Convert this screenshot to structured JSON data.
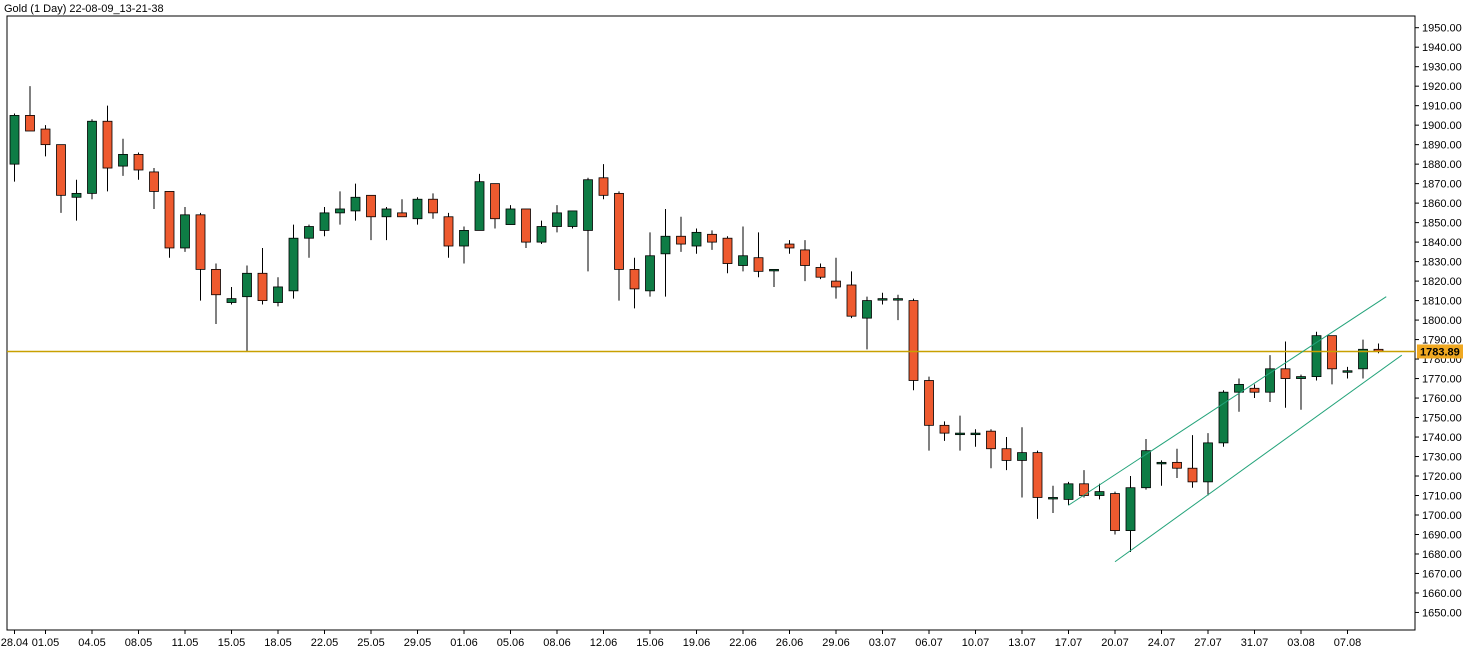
{
  "window": {
    "title": "Gold (1 Day) 22-08-09_13-21-38"
  },
  "colors": {
    "background": "#ffffff",
    "bull_fill": "#0e7c45",
    "bear_fill": "#ee5a2f",
    "wick": "#000000",
    "price_line": "#c8a000",
    "channel": "#23a37a",
    "price_label_bg": "#f0a820",
    "axis": "#000000"
  },
  "chart_data": {
    "type": "candlestick",
    "title": "Gold (1 Day) 22-08-09_13-21-38",
    "ylim": [
      1641,
      1956
    ],
    "y_ticks": [
      1650,
      1660,
      1670,
      1680,
      1690,
      1700,
      1710,
      1720,
      1730,
      1740,
      1750,
      1760,
      1770,
      1780,
      1790,
      1800,
      1810,
      1820,
      1830,
      1840,
      1850,
      1860,
      1870,
      1880,
      1890,
      1900,
      1910,
      1920,
      1930,
      1940,
      1950
    ],
    "y_tick_labels": [
      "1650.00",
      "1660.00",
      "1670.00",
      "1680.00",
      "1690.00",
      "1700.00",
      "1710.00",
      "1720.00",
      "1730.00",
      "1740.00",
      "1750.00",
      "1760.00",
      "1770.00",
      "1780.00",
      "1790.00",
      "1800.00",
      "1810.00",
      "1820.00",
      "1830.00",
      "1840.00",
      "1850.00",
      "1860.00",
      "1870.00",
      "1880.00",
      "1890.00",
      "1900.00",
      "1910.00",
      "1920.00",
      "1930.00",
      "1940.00",
      "1950.00"
    ],
    "x_tick_labels": [
      {
        "i": 0,
        "label": "28.04"
      },
      {
        "i": 2,
        "label": "01.05"
      },
      {
        "i": 5,
        "label": "04.05"
      },
      {
        "i": 8,
        "label": "08.05"
      },
      {
        "i": 11,
        "label": "11.05"
      },
      {
        "i": 14,
        "label": "15.05"
      },
      {
        "i": 17,
        "label": "18.05"
      },
      {
        "i": 20,
        "label": "22.05"
      },
      {
        "i": 23,
        "label": "25.05"
      },
      {
        "i": 26,
        "label": "29.05"
      },
      {
        "i": 29,
        "label": "01.06"
      },
      {
        "i": 32,
        "label": "05.06"
      },
      {
        "i": 35,
        "label": "08.06"
      },
      {
        "i": 38,
        "label": "12.06"
      },
      {
        "i": 41,
        "label": "15.06"
      },
      {
        "i": 44,
        "label": "19.06"
      },
      {
        "i": 47,
        "label": "22.06"
      },
      {
        "i": 50,
        "label": "26.06"
      },
      {
        "i": 53,
        "label": "29.06"
      },
      {
        "i": 56,
        "label": "03.07"
      },
      {
        "i": 59,
        "label": "06.07"
      },
      {
        "i": 62,
        "label": "10.07"
      },
      {
        "i": 65,
        "label": "13.07"
      },
      {
        "i": 68,
        "label": "17.07"
      },
      {
        "i": 71,
        "label": "20.07"
      },
      {
        "i": 74,
        "label": "24.07"
      },
      {
        "i": 77,
        "label": "27.07"
      },
      {
        "i": 80,
        "label": "31.07"
      },
      {
        "i": 83,
        "label": "03.08"
      },
      {
        "i": 86,
        "label": "07.08"
      }
    ],
    "candles": [
      {
        "o": 1880,
        "h": 1906,
        "l": 1871,
        "c": 1905
      },
      {
        "o": 1905,
        "h": 1920,
        "l": 1897,
        "c": 1897
      },
      {
        "o": 1898,
        "h": 1900,
        "l": 1884,
        "c": 1890
      },
      {
        "o": 1890,
        "h": 1890,
        "l": 1855,
        "c": 1864
      },
      {
        "o": 1863,
        "h": 1872,
        "l": 1851,
        "c": 1865
      },
      {
        "o": 1865,
        "h": 1903,
        "l": 1862,
        "c": 1902
      },
      {
        "o": 1902,
        "h": 1910,
        "l": 1866,
        "c": 1878
      },
      {
        "o": 1879,
        "h": 1893,
        "l": 1874,
        "c": 1885
      },
      {
        "o": 1885,
        "h": 1886,
        "l": 1872,
        "c": 1877
      },
      {
        "o": 1876,
        "h": 1878,
        "l": 1857,
        "c": 1866
      },
      {
        "o": 1866,
        "h": 1866,
        "l": 1832,
        "c": 1837
      },
      {
        "o": 1837,
        "h": 1858,
        "l": 1835,
        "c": 1854
      },
      {
        "o": 1854,
        "h": 1855,
        "l": 1810,
        "c": 1826
      },
      {
        "o": 1826,
        "h": 1829,
        "l": 1798,
        "c": 1813
      },
      {
        "o": 1809,
        "h": 1817,
        "l": 1808,
        "c": 1811
      },
      {
        "o": 1812,
        "h": 1828,
        "l": 1784,
        "c": 1824
      },
      {
        "o": 1824,
        "h": 1837,
        "l": 1808,
        "c": 1810
      },
      {
        "o": 1809,
        "h": 1822,
        "l": 1807,
        "c": 1817
      },
      {
        "o": 1815,
        "h": 1849,
        "l": 1811,
        "c": 1842
      },
      {
        "o": 1842,
        "h": 1849,
        "l": 1832,
        "c": 1848
      },
      {
        "o": 1846,
        "h": 1858,
        "l": 1843,
        "c": 1855
      },
      {
        "o": 1855,
        "h": 1866,
        "l": 1849,
        "c": 1857
      },
      {
        "o": 1856,
        "h": 1870,
        "l": 1851,
        "c": 1863
      },
      {
        "o": 1864,
        "h": 1864,
        "l": 1841,
        "c": 1853
      },
      {
        "o": 1853,
        "h": 1858,
        "l": 1841,
        "c": 1857
      },
      {
        "o": 1855,
        "h": 1862,
        "l": 1853,
        "c": 1853
      },
      {
        "o": 1852,
        "h": 1863,
        "l": 1849,
        "c": 1862
      },
      {
        "o": 1862,
        "h": 1865,
        "l": 1852,
        "c": 1855
      },
      {
        "o": 1853,
        "h": 1855,
        "l": 1832,
        "c": 1838
      },
      {
        "o": 1838,
        "h": 1848,
        "l": 1829,
        "c": 1846
      },
      {
        "o": 1846,
        "h": 1875,
        "l": 1846,
        "c": 1871
      },
      {
        "o": 1870,
        "h": 1870,
        "l": 1847,
        "c": 1852
      },
      {
        "o": 1849,
        "h": 1859,
        "l": 1849,
        "c": 1857
      },
      {
        "o": 1857,
        "h": 1857,
        "l": 1837,
        "c": 1840
      },
      {
        "o": 1840,
        "h": 1851,
        "l": 1839,
        "c": 1848
      },
      {
        "o": 1848,
        "h": 1859,
        "l": 1845,
        "c": 1855
      },
      {
        "o": 1848,
        "h": 1856,
        "l": 1847,
        "c": 1856
      },
      {
        "o": 1846,
        "h": 1873,
        "l": 1825,
        "c": 1872
      },
      {
        "o": 1873,
        "h": 1880,
        "l": 1862,
        "c": 1864
      },
      {
        "o": 1865,
        "h": 1866,
        "l": 1810,
        "c": 1826
      },
      {
        "o": 1826,
        "h": 1832,
        "l": 1806,
        "c": 1816
      },
      {
        "o": 1815,
        "h": 1845,
        "l": 1812,
        "c": 1833
      },
      {
        "o": 1834,
        "h": 1857,
        "l": 1812,
        "c": 1843
      },
      {
        "o": 1843,
        "h": 1853,
        "l": 1835,
        "c": 1839
      },
      {
        "o": 1838,
        "h": 1847,
        "l": 1834,
        "c": 1845
      },
      {
        "o": 1844,
        "h": 1846,
        "l": 1836,
        "c": 1840
      },
      {
        "o": 1842,
        "h": 1843,
        "l": 1824,
        "c": 1829
      },
      {
        "o": 1828,
        "h": 1848,
        "l": 1825,
        "c": 1833
      },
      {
        "o": 1832,
        "h": 1845,
        "l": 1822,
        "c": 1825
      },
      {
        "o": 1826,
        "h": 1826,
        "l": 1817,
        "c": 1826
      },
      {
        "o": 1839,
        "h": 1841,
        "l": 1834,
        "c": 1837
      },
      {
        "o": 1836,
        "h": 1841,
        "l": 1820,
        "c": 1828
      },
      {
        "o": 1827,
        "h": 1829,
        "l": 1821,
        "c": 1822
      },
      {
        "o": 1820,
        "h": 1832,
        "l": 1811,
        "c": 1817
      },
      {
        "o": 1818,
        "h": 1825,
        "l": 1801,
        "c": 1802
      },
      {
        "o": 1801,
        "h": 1812,
        "l": 1785,
        "c": 1810
      },
      {
        "o": 1811,
        "h": 1814,
        "l": 1808,
        "c": 1811
      },
      {
        "o": 1811,
        "h": 1813,
        "l": 1800,
        "c": 1811
      },
      {
        "o": 1810,
        "h": 1811,
        "l": 1764,
        "c": 1769
      },
      {
        "o": 1769,
        "h": 1771,
        "l": 1733,
        "c": 1746
      },
      {
        "o": 1746,
        "h": 1748,
        "l": 1738,
        "c": 1742
      },
      {
        "o": 1742,
        "h": 1751,
        "l": 1733,
        "c": 1742
      },
      {
        "o": 1742,
        "h": 1744,
        "l": 1735,
        "c": 1742
      },
      {
        "o": 1743,
        "h": 1744,
        "l": 1724,
        "c": 1734
      },
      {
        "o": 1734,
        "h": 1740,
        "l": 1723,
        "c": 1728
      },
      {
        "o": 1728,
        "h": 1745,
        "l": 1709,
        "c": 1732
      },
      {
        "o": 1732,
        "h": 1733,
        "l": 1698,
        "c": 1709
      },
      {
        "o": 1709,
        "h": 1715,
        "l": 1701,
        "c": 1709
      },
      {
        "o": 1708,
        "h": 1717,
        "l": 1705,
        "c": 1716
      },
      {
        "o": 1716,
        "h": 1723,
        "l": 1709,
        "c": 1710
      },
      {
        "o": 1710,
        "h": 1716,
        "l": 1708,
        "c": 1712
      },
      {
        "o": 1711,
        "h": 1712,
        "l": 1690,
        "c": 1692
      },
      {
        "o": 1692,
        "h": 1720,
        "l": 1681,
        "c": 1714
      },
      {
        "o": 1714,
        "h": 1739,
        "l": 1713,
        "c": 1733
      },
      {
        "o": 1727,
        "h": 1728,
        "l": 1715,
        "c": 1727
      },
      {
        "o": 1727,
        "h": 1734,
        "l": 1719,
        "c": 1724
      },
      {
        "o": 1724,
        "h": 1741,
        "l": 1714,
        "c": 1717
      },
      {
        "o": 1717,
        "h": 1742,
        "l": 1710,
        "c": 1737
      },
      {
        "o": 1737,
        "h": 1764,
        "l": 1735,
        "c": 1763
      },
      {
        "o": 1763,
        "h": 1770,
        "l": 1753,
        "c": 1767
      },
      {
        "o": 1765,
        "h": 1767,
        "l": 1760,
        "c": 1763
      },
      {
        "o": 1763,
        "h": 1782,
        "l": 1758,
        "c": 1775
      },
      {
        "o": 1775,
        "h": 1789,
        "l": 1755,
        "c": 1770
      },
      {
        "o": 1770,
        "h": 1772,
        "l": 1754,
        "c": 1771
      },
      {
        "o": 1771,
        "h": 1794,
        "l": 1769,
        "c": 1792
      },
      {
        "o": 1792,
        "h": 1792,
        "l": 1767,
        "c": 1775
      },
      {
        "o": 1774,
        "h": 1776,
        "l": 1770,
        "c": 1774
      },
      {
        "o": 1775,
        "h": 1790,
        "l": 1770,
        "c": 1785
      },
      {
        "o": 1785,
        "h": 1788,
        "l": 1783,
        "c": 1784
      }
    ],
    "horizontal_line": {
      "value": 1783.89,
      "label": "1783.89"
    },
    "channel_lines": [
      {
        "from": {
          "i": 68.0,
          "v": 1705
        },
        "to": {
          "i": 88.5,
          "v": 1812
        }
      },
      {
        "from": {
          "i": 71.0,
          "v": 1676
        },
        "to": {
          "i": 89.5,
          "v": 1782
        }
      }
    ]
  }
}
